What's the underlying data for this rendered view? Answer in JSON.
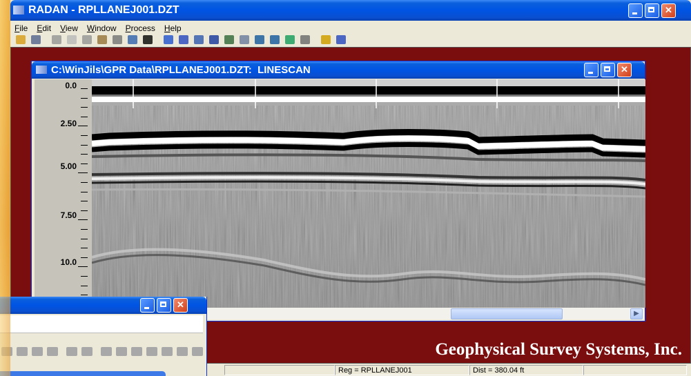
{
  "app": {
    "title": "RADAN - RPLLANEJ001.DZT",
    "menu": [
      "File",
      "Edit",
      "View",
      "Window",
      "Process",
      "Help"
    ]
  },
  "linescan": {
    "title": "C:\\WinJils\\GPR Data\\RPLLANEJ001.DZT:  LINESCAN",
    "depth_labels": [
      "0.0",
      "2.50",
      "5.00",
      "7.50",
      "10.0"
    ]
  },
  "banner": "Geophysical Survey Systems, Inc.",
  "status": [
    "Reg = RPLLANEJ001",
    "Dist = 380.04 ft"
  ]
}
